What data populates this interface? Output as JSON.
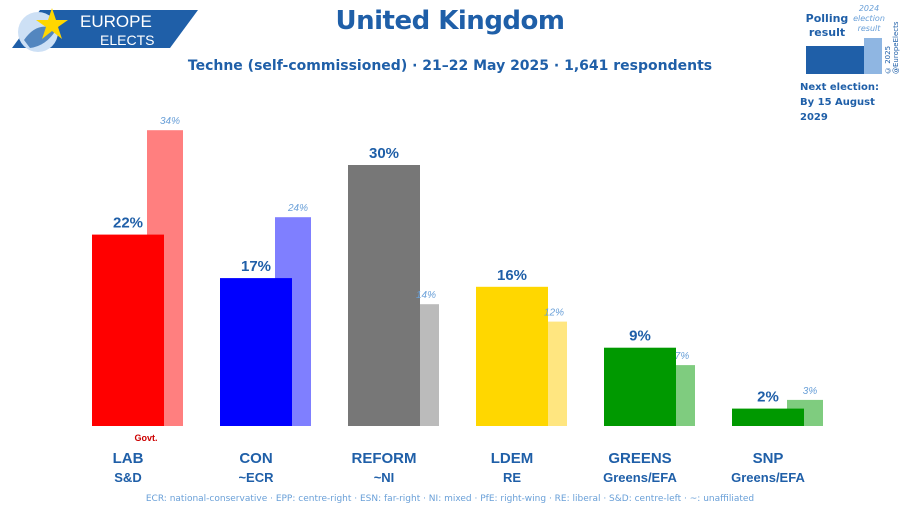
{
  "header": {
    "logo_line1": "EUROPE",
    "logo_line2": "ELECTS",
    "title": "United Kingdom",
    "subtitle": "Techne (self-commissioned) · 21–22 May 2025 · 1,641 respondents"
  },
  "legend": {
    "polling_label": "Polling result",
    "previous_label": "2024 election result",
    "copyright": "© 2025 @EuropeElects",
    "next_election_label": "Next election:",
    "next_election_date": "By 15 August 2029"
  },
  "chart_data": {
    "type": "bar",
    "title": "United Kingdom",
    "categories": [
      "LAB",
      "CON",
      "REFORM",
      "LDEM",
      "GREENS",
      "SNP"
    ],
    "groups": [
      "S&D",
      "~ECR",
      "~NI",
      "RE",
      "Greens/EFA",
      "Greens/EFA"
    ],
    "series": [
      {
        "name": "Polling result",
        "values": [
          22,
          17,
          30,
          16,
          9,
          2
        ]
      },
      {
        "name": "2024 election result",
        "values": [
          34,
          24,
          14,
          12,
          7,
          3
        ]
      }
    ],
    "value_labels": [
      "22%",
      "17%",
      "30%",
      "16%",
      "9%",
      "2%"
    ],
    "previous_labels": [
      "34%",
      "24%",
      "14%",
      "12%",
      "7%",
      "3%"
    ],
    "colors": [
      "#ff0000",
      "#0000ff",
      "#777777",
      "#ffd700",
      "#009900",
      "#009900"
    ],
    "previous_colors": [
      "#ff7f7f",
      "#7f7fff",
      "#bbbbbb",
      "#ffe680",
      "#7fcc7f",
      "#7fcc7f"
    ],
    "annotations": [
      {
        "category": "LAB",
        "text": "Govt."
      }
    ],
    "ylim": [
      0,
      34
    ]
  },
  "footer": "ECR: national-conservative · EPP: centre-right · ESN: far-right · NI: mixed · PfE: right-wing · RE: liberal · S&D: centre-left · ~: unaffiliated"
}
